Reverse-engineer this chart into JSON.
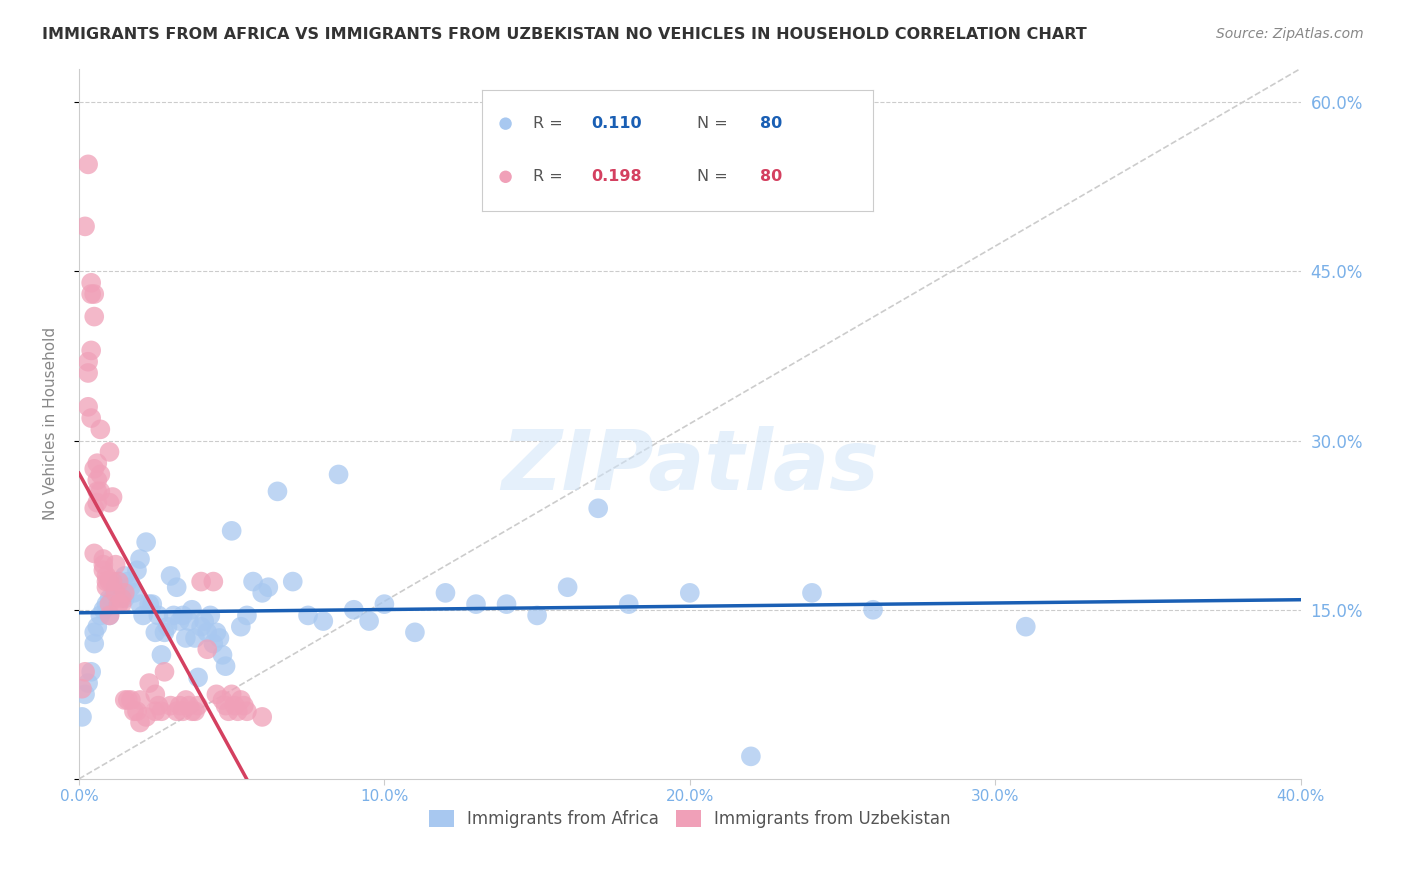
{
  "title": "IMMIGRANTS FROM AFRICA VS IMMIGRANTS FROM UZBEKISTAN NO VEHICLES IN HOUSEHOLD CORRELATION CHART",
  "source": "Source: ZipAtlas.com",
  "ylabel": "No Vehicles in Household",
  "yticks": [
    0.0,
    0.15,
    0.3,
    0.45,
    0.6
  ],
  "ytick_labels": [
    "",
    "15.0%",
    "30.0%",
    "45.0%",
    "60.0%"
  ],
  "xlim": [
    0.0,
    0.4
  ],
  "ylim": [
    0.0,
    0.63
  ],
  "watermark": "ZIPatlas",
  "africa_color": "#a8c8f0",
  "uzbekistan_color": "#f0a0b8",
  "africa_line_color": "#1a5fb4",
  "uzbekistan_line_color": "#d44060",
  "africa_R": 0.11,
  "uzbekistan_R": 0.198,
  "africa_scatter": [
    [
      0.001,
      0.055
    ],
    [
      0.002,
      0.075
    ],
    [
      0.003,
      0.085
    ],
    [
      0.004,
      0.095
    ],
    [
      0.005,
      0.13
    ],
    [
      0.005,
      0.12
    ],
    [
      0.006,
      0.135
    ],
    [
      0.007,
      0.145
    ],
    [
      0.008,
      0.15
    ],
    [
      0.009,
      0.155
    ],
    [
      0.01,
      0.145
    ],
    [
      0.01,
      0.16
    ],
    [
      0.011,
      0.16
    ],
    [
      0.012,
      0.165
    ],
    [
      0.012,
      0.17
    ],
    [
      0.013,
      0.175
    ],
    [
      0.014,
      0.165
    ],
    [
      0.015,
      0.16
    ],
    [
      0.015,
      0.18
    ],
    [
      0.016,
      0.175
    ],
    [
      0.017,
      0.17
    ],
    [
      0.018,
      0.165
    ],
    [
      0.019,
      0.185
    ],
    [
      0.02,
      0.155
    ],
    [
      0.02,
      0.195
    ],
    [
      0.021,
      0.145
    ],
    [
      0.022,
      0.21
    ],
    [
      0.023,
      0.155
    ],
    [
      0.024,
      0.155
    ],
    [
      0.025,
      0.13
    ],
    [
      0.026,
      0.145
    ],
    [
      0.027,
      0.11
    ],
    [
      0.028,
      0.13
    ],
    [
      0.029,
      0.135
    ],
    [
      0.03,
      0.18
    ],
    [
      0.031,
      0.145
    ],
    [
      0.032,
      0.17
    ],
    [
      0.033,
      0.14
    ],
    [
      0.034,
      0.145
    ],
    [
      0.035,
      0.125
    ],
    [
      0.036,
      0.14
    ],
    [
      0.037,
      0.15
    ],
    [
      0.038,
      0.125
    ],
    [
      0.039,
      0.09
    ],
    [
      0.04,
      0.135
    ],
    [
      0.041,
      0.14
    ],
    [
      0.042,
      0.13
    ],
    [
      0.043,
      0.145
    ],
    [
      0.044,
      0.12
    ],
    [
      0.045,
      0.13
    ],
    [
      0.046,
      0.125
    ],
    [
      0.047,
      0.11
    ],
    [
      0.048,
      0.1
    ],
    [
      0.05,
      0.22
    ],
    [
      0.053,
      0.135
    ],
    [
      0.055,
      0.145
    ],
    [
      0.057,
      0.175
    ],
    [
      0.06,
      0.165
    ],
    [
      0.062,
      0.17
    ],
    [
      0.065,
      0.255
    ],
    [
      0.07,
      0.175
    ],
    [
      0.075,
      0.145
    ],
    [
      0.08,
      0.14
    ],
    [
      0.085,
      0.27
    ],
    [
      0.09,
      0.15
    ],
    [
      0.095,
      0.14
    ],
    [
      0.1,
      0.155
    ],
    [
      0.11,
      0.13
    ],
    [
      0.12,
      0.165
    ],
    [
      0.13,
      0.155
    ],
    [
      0.14,
      0.155
    ],
    [
      0.15,
      0.145
    ],
    [
      0.16,
      0.17
    ],
    [
      0.17,
      0.24
    ],
    [
      0.18,
      0.155
    ],
    [
      0.2,
      0.165
    ],
    [
      0.22,
      0.02
    ],
    [
      0.24,
      0.165
    ],
    [
      0.26,
      0.15
    ],
    [
      0.31,
      0.135
    ]
  ],
  "uzbekistan_scatter": [
    [
      0.001,
      0.08
    ],
    [
      0.002,
      0.095
    ],
    [
      0.002,
      0.49
    ],
    [
      0.003,
      0.545
    ],
    [
      0.003,
      0.37
    ],
    [
      0.003,
      0.36
    ],
    [
      0.003,
      0.33
    ],
    [
      0.004,
      0.44
    ],
    [
      0.004,
      0.43
    ],
    [
      0.004,
      0.38
    ],
    [
      0.004,
      0.32
    ],
    [
      0.005,
      0.43
    ],
    [
      0.005,
      0.41
    ],
    [
      0.005,
      0.24
    ],
    [
      0.005,
      0.2
    ],
    [
      0.005,
      0.275
    ],
    [
      0.006,
      0.28
    ],
    [
      0.006,
      0.265
    ],
    [
      0.006,
      0.255
    ],
    [
      0.006,
      0.245
    ],
    [
      0.007,
      0.31
    ],
    [
      0.007,
      0.27
    ],
    [
      0.007,
      0.255
    ],
    [
      0.008,
      0.195
    ],
    [
      0.008,
      0.19
    ],
    [
      0.008,
      0.185
    ],
    [
      0.009,
      0.18
    ],
    [
      0.009,
      0.175
    ],
    [
      0.009,
      0.17
    ],
    [
      0.01,
      0.29
    ],
    [
      0.01,
      0.245
    ],
    [
      0.01,
      0.175
    ],
    [
      0.01,
      0.155
    ],
    [
      0.01,
      0.145
    ],
    [
      0.011,
      0.25
    ],
    [
      0.011,
      0.175
    ],
    [
      0.012,
      0.19
    ],
    [
      0.012,
      0.165
    ],
    [
      0.013,
      0.175
    ],
    [
      0.013,
      0.155
    ],
    [
      0.014,
      0.16
    ],
    [
      0.014,
      0.155
    ],
    [
      0.015,
      0.165
    ],
    [
      0.015,
      0.07
    ],
    [
      0.016,
      0.07
    ],
    [
      0.017,
      0.07
    ],
    [
      0.018,
      0.06
    ],
    [
      0.019,
      0.06
    ],
    [
      0.02,
      0.05
    ],
    [
      0.02,
      0.07
    ],
    [
      0.022,
      0.055
    ],
    [
      0.023,
      0.085
    ],
    [
      0.025,
      0.06
    ],
    [
      0.025,
      0.075
    ],
    [
      0.026,
      0.065
    ],
    [
      0.027,
      0.06
    ],
    [
      0.028,
      0.095
    ],
    [
      0.03,
      0.065
    ],
    [
      0.032,
      0.06
    ],
    [
      0.033,
      0.065
    ],
    [
      0.034,
      0.06
    ],
    [
      0.035,
      0.07
    ],
    [
      0.036,
      0.065
    ],
    [
      0.037,
      0.06
    ],
    [
      0.038,
      0.06
    ],
    [
      0.039,
      0.065
    ],
    [
      0.04,
      0.175
    ],
    [
      0.042,
      0.115
    ],
    [
      0.044,
      0.175
    ],
    [
      0.045,
      0.075
    ],
    [
      0.047,
      0.07
    ],
    [
      0.048,
      0.065
    ],
    [
      0.049,
      0.06
    ],
    [
      0.05,
      0.075
    ],
    [
      0.051,
      0.065
    ],
    [
      0.052,
      0.06
    ],
    [
      0.053,
      0.07
    ],
    [
      0.054,
      0.065
    ],
    [
      0.055,
      0.06
    ],
    [
      0.06,
      0.055
    ]
  ],
  "diag_line": [
    [
      0.0,
      0.0
    ],
    [
      0.4,
      0.63
    ]
  ],
  "x_ticks": [
    0.0,
    0.1,
    0.2,
    0.3,
    0.4
  ],
  "x_tick_labels": [
    "0.0%",
    "10.0%",
    "20.0%",
    "30.0%",
    "40.0%"
  ]
}
